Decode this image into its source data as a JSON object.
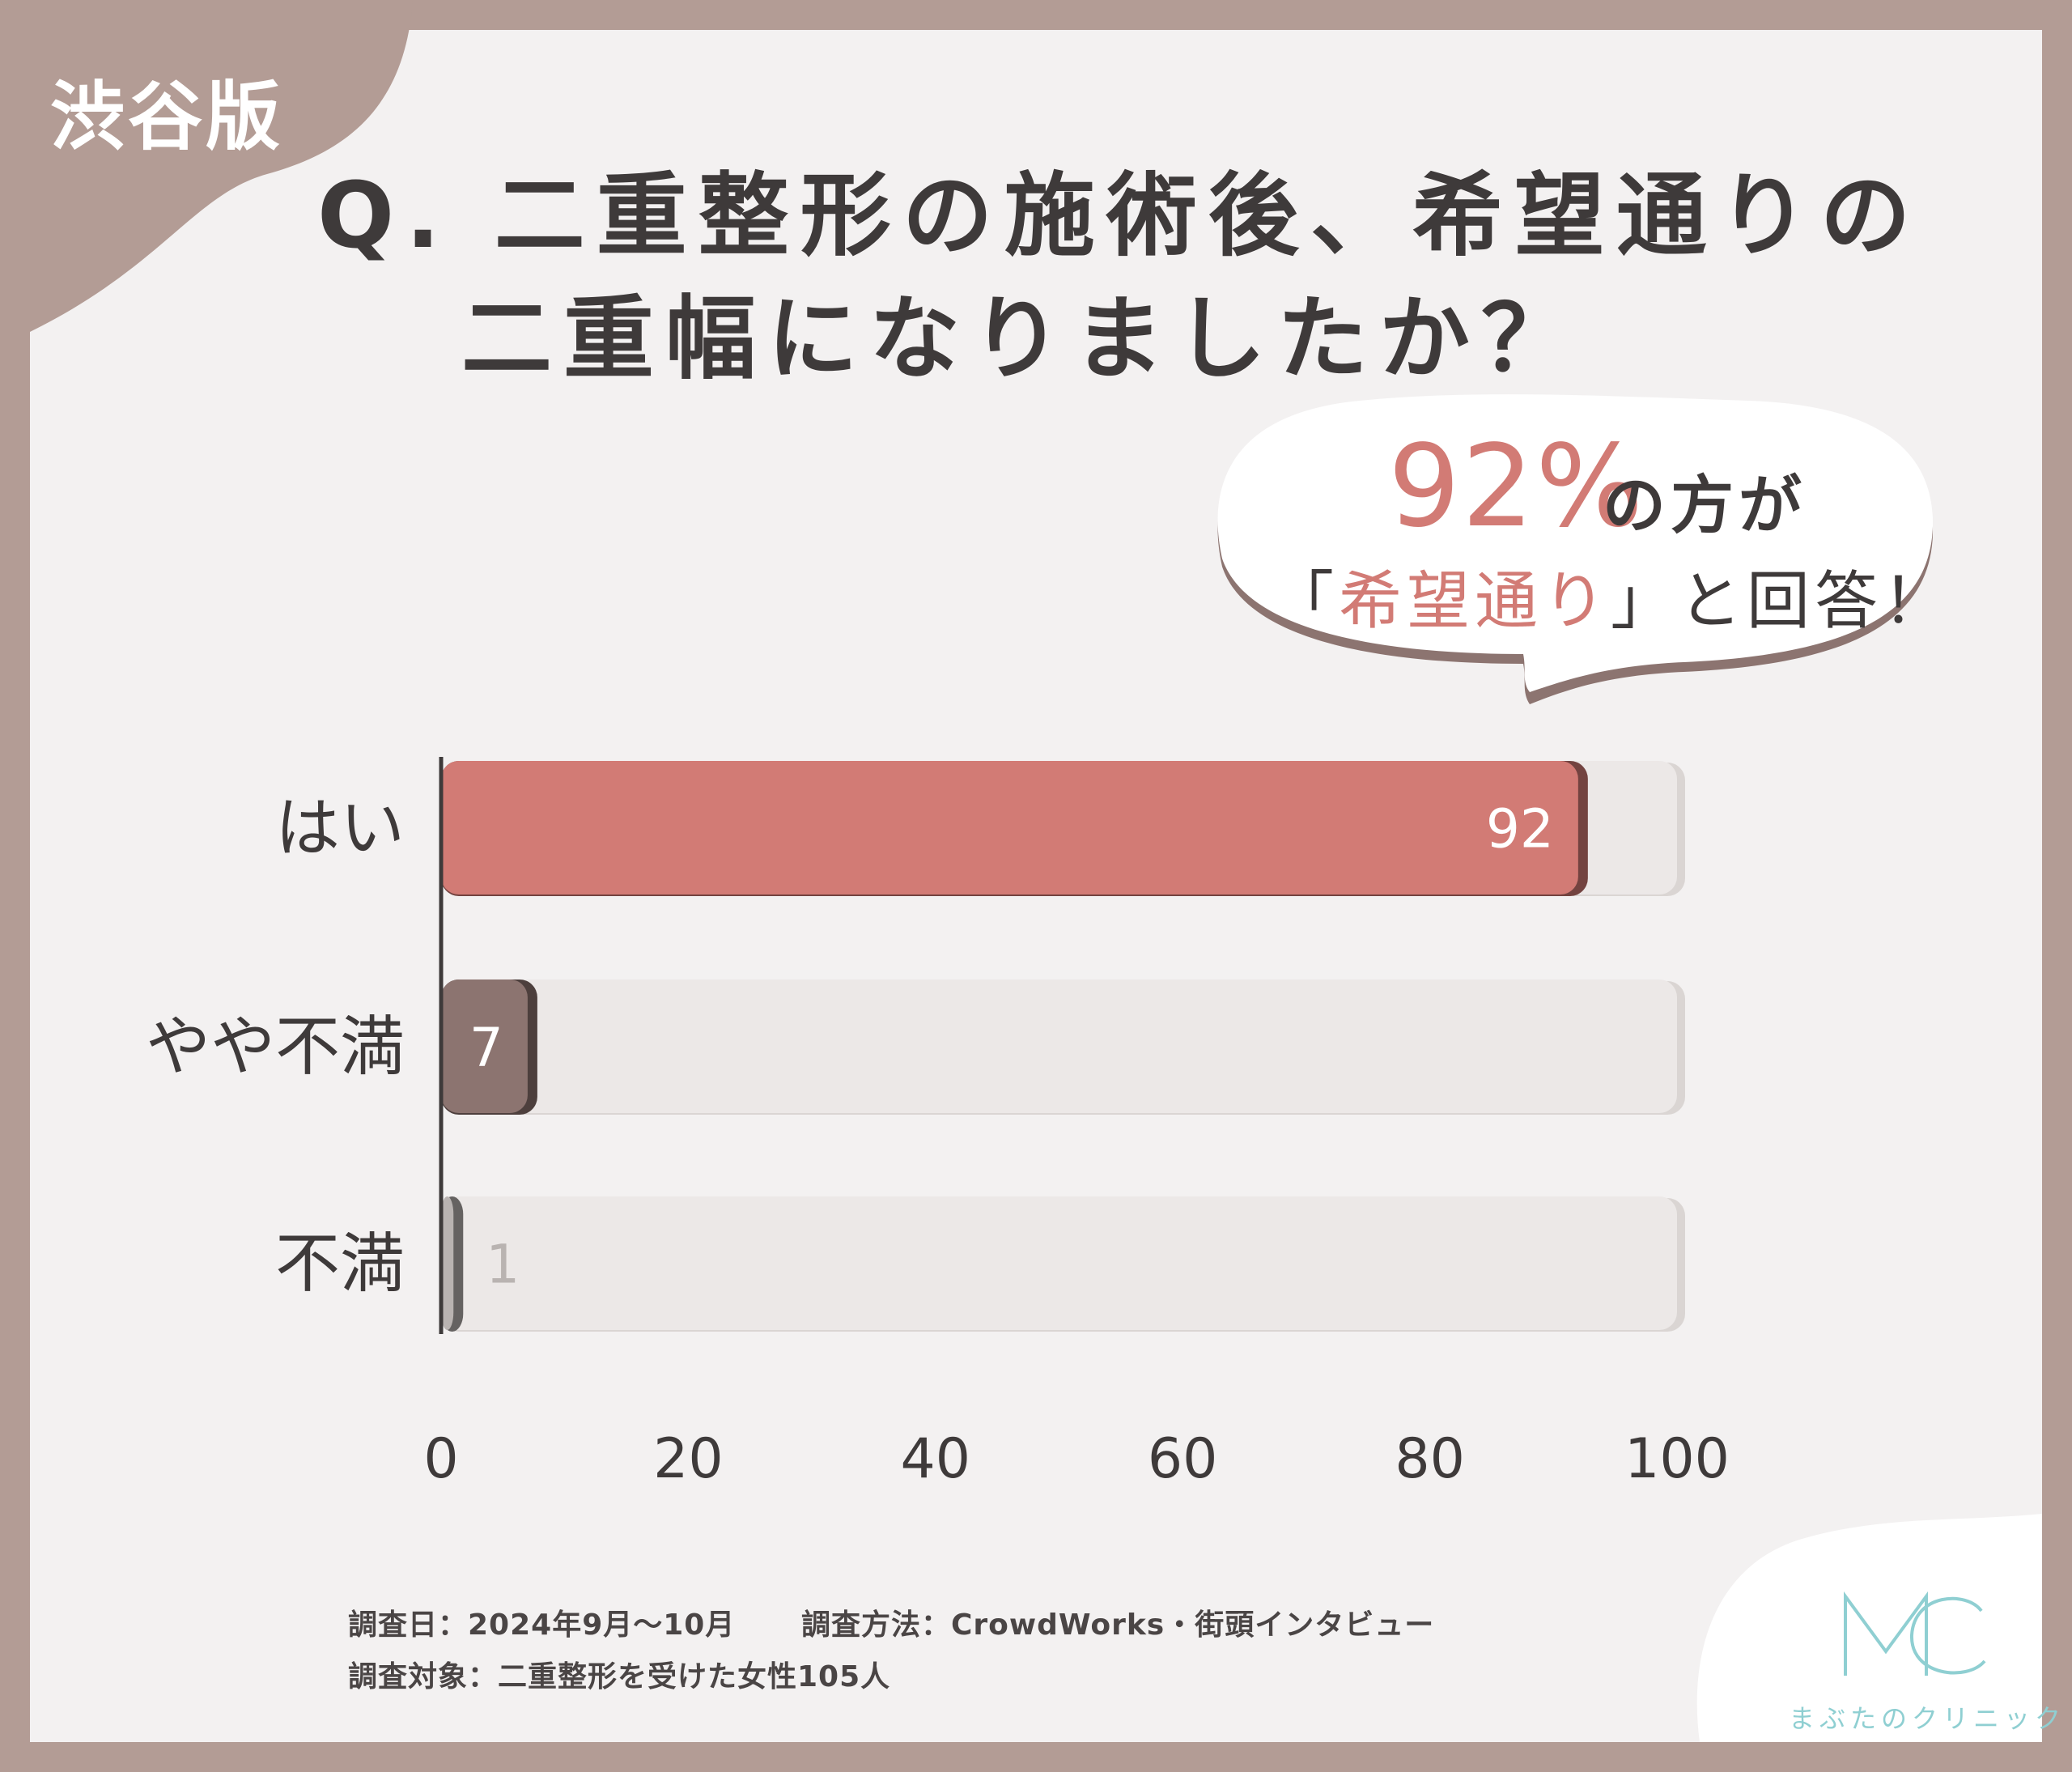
{
  "badge": {
    "label": "渋谷版"
  },
  "title": {
    "line1": "Q. 二重整形の施術後、希望通りの",
    "line2": "二重幅になりましたか？"
  },
  "callout": {
    "percent": "92%",
    "line1_suffix": "の方が",
    "line2_open": "「",
    "line2_highlight": "希望通り",
    "line2_close": "」と回答！"
  },
  "chart_data": {
    "type": "bar",
    "orientation": "horizontal",
    "categories": [
      "はい",
      "やや不満",
      "不満"
    ],
    "values": [
      92,
      7,
      1
    ],
    "value_labels": [
      "92",
      "7",
      "1"
    ],
    "xlim": [
      0,
      100
    ],
    "x_ticks": [
      "0",
      "20",
      "40",
      "60",
      "80",
      "100"
    ],
    "colors": [
      "#d27b75",
      "#8c7470",
      "#b9b3b1"
    ],
    "track_color": "#ece8e7",
    "grid": false,
    "legend": "none"
  },
  "footnote": {
    "date": "調査日：2024年9月〜10月",
    "method": "調査方法：CrowdWorks・街頭インタビュー",
    "target": "調査対象：二重整形を受けた女性105人"
  },
  "logo": {
    "mark": "MC",
    "name": "まぶたのクリニック",
    "color": "#8fcfd2"
  }
}
